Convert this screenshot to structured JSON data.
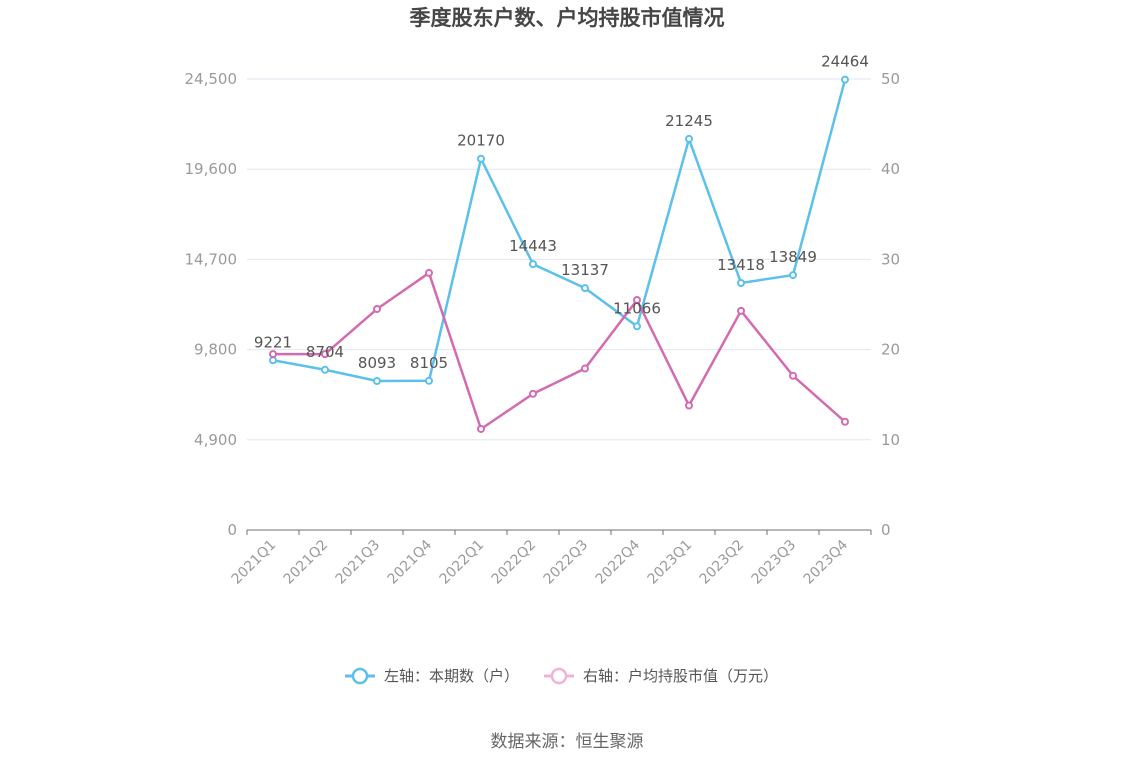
{
  "chart_data": {
    "type": "line",
    "title": "季度股东户数、户均持股市值情况",
    "categories": [
      "2021Q1",
      "2021Q2",
      "2021Q3",
      "2021Q4",
      "2022Q1",
      "2022Q2",
      "2022Q3",
      "2022Q4",
      "2023Q1",
      "2023Q2",
      "2023Q3",
      "2023Q4"
    ],
    "left_axis": {
      "min": 0,
      "max": 24500,
      "ticks": [
        "0",
        "4,900",
        "9,800",
        "14,700",
        "19,600",
        "24,500"
      ],
      "tick_values": [
        0,
        4900,
        9800,
        14700,
        19600,
        24500
      ]
    },
    "right_axis": {
      "min": 0,
      "max": 50,
      "ticks": [
        "0",
        "10",
        "20",
        "30",
        "40",
        "50"
      ],
      "tick_values": [
        0,
        10,
        20,
        30,
        40,
        50
      ]
    },
    "series": [
      {
        "name": "左轴：本期数（户）",
        "axis": "left",
        "color": "#5bc0eb",
        "values": [
          9221,
          8704,
          8093,
          8105,
          20170,
          14443,
          13137,
          11066,
          21245,
          13418,
          13849,
          24464
        ],
        "labels": [
          "9221",
          "8704",
          "8093",
          "8105",
          "20170",
          "14443",
          "13137",
          "11066",
          "21245",
          "13418",
          "13849",
          "24464"
        ]
      },
      {
        "name": "右轴：户均持股市值（万元）",
        "axis": "right",
        "color": "#d36bb0",
        "values": [
          19.5,
          19.5,
          24.5,
          28.5,
          11.2,
          15.1,
          17.9,
          25.5,
          13.8,
          24.3,
          17.1,
          12.0
        ]
      }
    ],
    "grid": true,
    "legend_position": "bottom"
  },
  "source": "数据来源：恒生聚源"
}
